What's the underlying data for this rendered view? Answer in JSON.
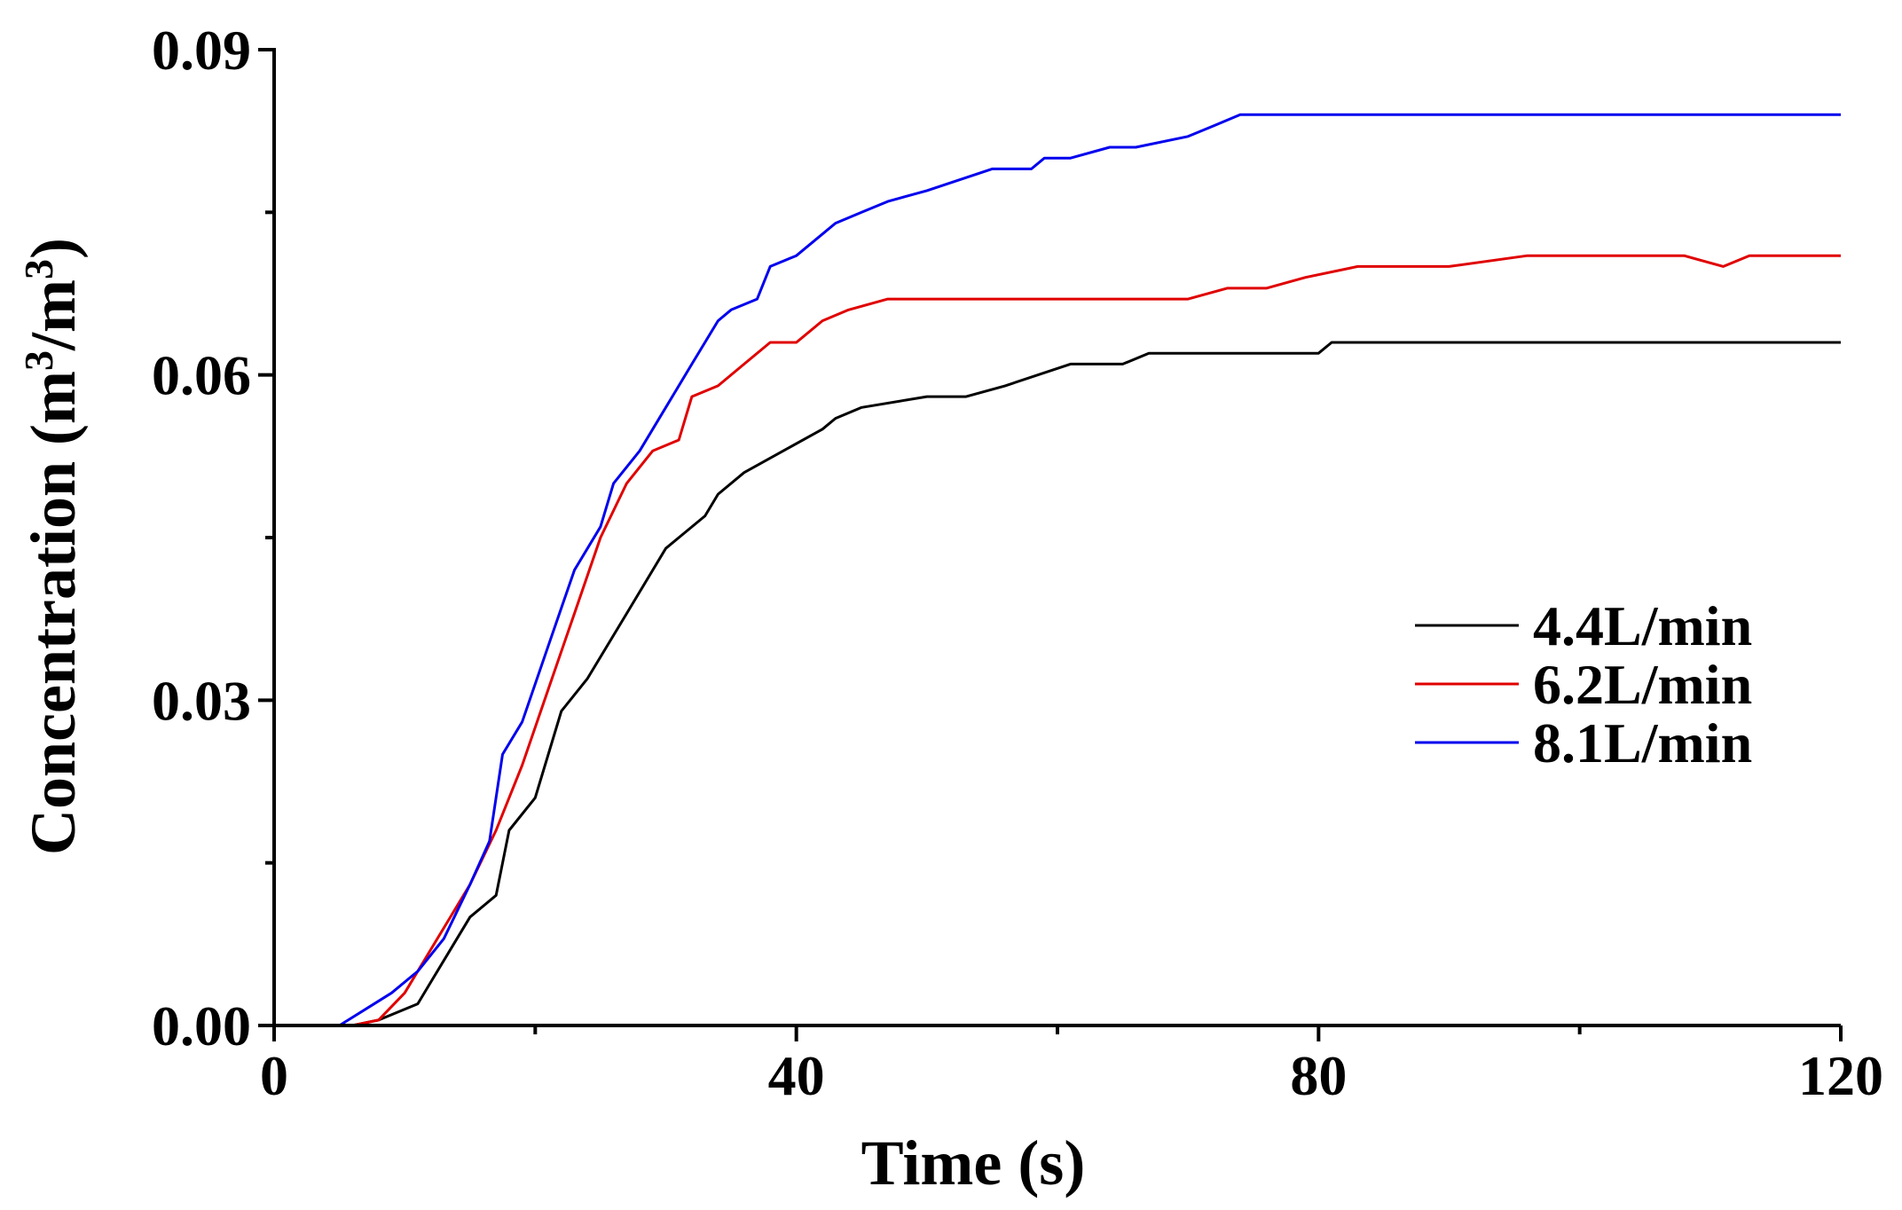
{
  "chart_data": {
    "type": "line",
    "title": "",
    "xlabel": "Time (s)",
    "ylabel": "Concentration (m³/m³)",
    "ylabel_parts": {
      "base": "Concentration (m",
      "sup1": "3",
      "mid": "/m",
      "sup2": "3",
      "end": ")"
    },
    "xlim": [
      0,
      120
    ],
    "ylim": [
      0,
      0.09
    ],
    "xticks": [
      0,
      40,
      80,
      120
    ],
    "xtick_labels": [
      "0",
      "40",
      "80",
      "120"
    ],
    "xticks_minor": [
      20,
      60,
      100
    ],
    "yticks": [
      0,
      0.03,
      0.06,
      0.09
    ],
    "ytick_labels": [
      "0.00",
      "0.03",
      "0.06",
      "0.09"
    ],
    "yticks_minor": [
      0.015,
      0.045,
      0.075
    ],
    "legend_position": "center-right",
    "series": [
      {
        "name": "4.4L/min",
        "color": "#000000",
        "x": [
          0,
          6,
          8,
          11,
          12,
          15,
          17,
          18,
          20,
          22,
          24,
          27,
          30,
          31,
          33,
          34,
          36,
          39,
          42,
          43,
          45,
          50,
          53,
          56,
          61,
          65,
          67,
          80,
          81,
          120
        ],
        "y": [
          0,
          0,
          0.0005,
          0.002,
          0.004,
          0.01,
          0.012,
          0.018,
          0.021,
          0.029,
          0.032,
          0.038,
          0.044,
          0.045,
          0.047,
          0.049,
          0.051,
          0.053,
          0.055,
          0.056,
          0.057,
          0.058,
          0.058,
          0.059,
          0.061,
          0.061,
          0.062,
          0.062,
          0.063,
          0.063
        ]
      },
      {
        "name": "6.2L/min",
        "color": "#e00000",
        "x": [
          0,
          6,
          8,
          10,
          12,
          15,
          17,
          19,
          21,
          23,
          25,
          27,
          29,
          31,
          32,
          34,
          36,
          38,
          40,
          42,
          44,
          47,
          50,
          60,
          70,
          73,
          76,
          79,
          83,
          90,
          96,
          108,
          111,
          113,
          120
        ],
        "y": [
          0,
          0,
          0.0005,
          0.003,
          0.007,
          0.013,
          0.018,
          0.024,
          0.031,
          0.038,
          0.045,
          0.05,
          0.053,
          0.054,
          0.058,
          0.059,
          0.061,
          0.063,
          0.063,
          0.065,
          0.066,
          0.067,
          0.067,
          0.067,
          0.067,
          0.068,
          0.068,
          0.069,
          0.07,
          0.07,
          0.071,
          0.071,
          0.07,
          0.071,
          0.071
        ]
      },
      {
        "name": "8.1L/min",
        "color": "#0000ee",
        "x": [
          0,
          5,
          7,
          9,
          11,
          13,
          15,
          16.5,
          17.5,
          19,
          21,
          23,
          25,
          26,
          28,
          30,
          32,
          34,
          35,
          37,
          38,
          40,
          42,
          43,
          45,
          47,
          50,
          55,
          58,
          59,
          61,
          64,
          66,
          70,
          72,
          74,
          120
        ],
        "y": [
          0,
          0,
          0.0015,
          0.003,
          0.005,
          0.008,
          0.013,
          0.017,
          0.025,
          0.028,
          0.035,
          0.042,
          0.046,
          0.05,
          0.053,
          0.057,
          0.061,
          0.065,
          0.066,
          0.067,
          0.07,
          0.071,
          0.073,
          0.074,
          0.075,
          0.076,
          0.077,
          0.079,
          0.079,
          0.08,
          0.08,
          0.081,
          0.081,
          0.082,
          0.083,
          0.084,
          0.084
        ]
      }
    ]
  }
}
